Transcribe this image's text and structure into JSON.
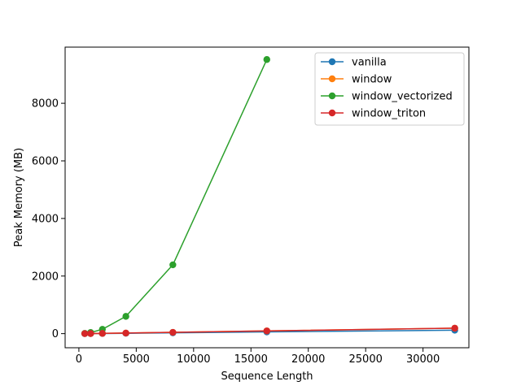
{
  "chart_data": {
    "type": "line",
    "title": "",
    "xlabel": "Sequence Length",
    "ylabel": "Peak Memory (MB)",
    "xlim": [
      -1200,
      34000
    ],
    "ylim": [
      -490,
      9950
    ],
    "x_ticks": [
      0,
      5000,
      10000,
      15000,
      20000,
      25000,
      30000
    ],
    "x_tick_labels": [
      "0",
      "5000",
      "10000",
      "15000",
      "20000",
      "25000",
      "30000"
    ],
    "y_ticks": [
      0,
      2000,
      4000,
      6000,
      8000
    ],
    "y_tick_labels": [
      "0",
      "2000",
      "4000",
      "6000",
      "8000"
    ],
    "grid": false,
    "legend_position": "upper right",
    "series": [
      {
        "name": "vanilla",
        "color": "#1f77b4",
        "x": [
          512,
          1024,
          2048,
          4096,
          8192,
          16384,
          32768
        ],
        "y": [
          1,
          2,
          5,
          12,
          28,
          60,
          120
        ]
      },
      {
        "name": "window",
        "color": "#ff7f0e",
        "x": [
          512,
          1024,
          2048,
          4096,
          8192,
          16384,
          32768
        ],
        "y": [
          2,
          4,
          9,
          20,
          45,
          95,
          190
        ]
      },
      {
        "name": "window_vectorized",
        "color": "#2ca02c",
        "x": [
          512,
          1024,
          2048,
          4096,
          8192,
          16384
        ],
        "y": [
          8,
          40,
          150,
          600,
          2390,
          9520
        ]
      },
      {
        "name": "window_triton",
        "color": "#d62728",
        "x": [
          512,
          1024,
          2048,
          4096,
          8192,
          16384,
          32768
        ],
        "y": [
          2,
          4,
          9,
          20,
          45,
          95,
          190
        ]
      }
    ]
  }
}
